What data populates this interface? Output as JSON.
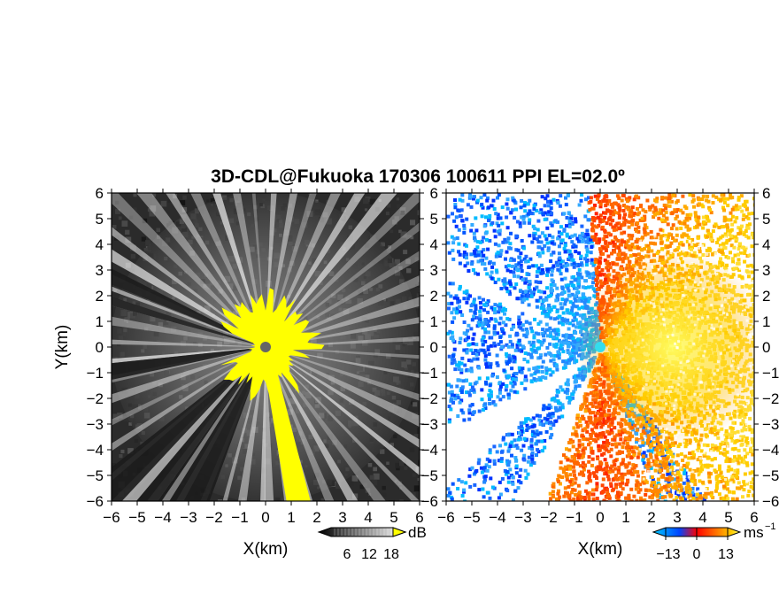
{
  "figure": {
    "title": "3D-CDL@Fukuoka 170306 100611 PPI EL=02.0º"
  },
  "chart_data": [
    {
      "type": "heatmap",
      "panel": "left",
      "xlabel": "X(km)",
      "ylabel": "Y(km)",
      "xlim": [
        -6,
        6
      ],
      "ylim": [
        -6,
        6
      ],
      "x_ticks": [
        -6,
        -5,
        -4,
        -3,
        -2,
        -1,
        0,
        1,
        2,
        3,
        4,
        5,
        6
      ],
      "y_ticks": [
        -6,
        -5,
        -4,
        -3,
        -2,
        -1,
        0,
        1,
        2,
        3,
        4,
        5,
        6
      ],
      "colorbar": {
        "unit": "dB",
        "ticks": [
          6,
          12,
          18
        ],
        "colors": [
          "#000000",
          "#ffffff"
        ],
        "masked_color": "#ffff00"
      },
      "radar_center": [
        0,
        0
      ],
      "masked_region_radius_km": 2.1,
      "blanked_sectors_deg_from_north": [
        [
          -75,
          -72
        ],
        [
          -68,
          -63
        ],
        [
          -102,
          -96
        ],
        [
          200,
          215
        ],
        [
          215,
          232
        ]
      ]
    },
    {
      "type": "heatmap",
      "panel": "right",
      "xlabel": "X(km)",
      "xlim": [
        -6,
        6
      ],
      "ylim": [
        -6,
        6
      ],
      "x_ticks": [
        -6,
        -5,
        -4,
        -3,
        -2,
        -1,
        0,
        1,
        2,
        3,
        4,
        5,
        6
      ],
      "y_ticks": [
        -6,
        -5,
        -4,
        -3,
        -2,
        -1,
        0,
        1,
        2,
        3,
        4,
        5,
        6
      ],
      "colorbar": {
        "unit": "ms",
        "unit_exp": "−1",
        "ticks": [
          "−13",
          "0",
          "13"
        ],
        "range": [
          -13,
          13
        ],
        "colors": [
          "#00ccff",
          "#0044ff",
          "#ff0000",
          "#ff6600",
          "#ffcc00",
          "#ffff66"
        ]
      },
      "radar_center": [
        0,
        0
      ],
      "approach_color": "#1a66ff",
      "recede_color": "#ff6a00"
    }
  ]
}
